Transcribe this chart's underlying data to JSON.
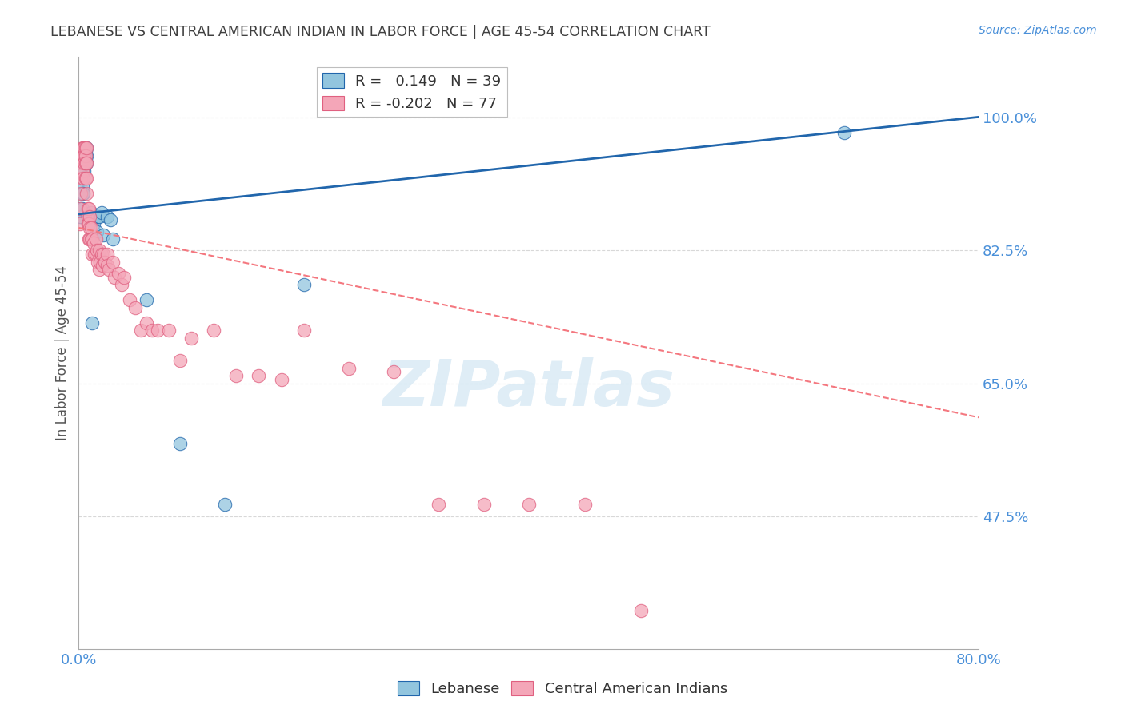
{
  "title": "LEBANESE VS CENTRAL AMERICAN INDIAN IN LABOR FORCE | AGE 45-54 CORRELATION CHART",
  "source": "Source: ZipAtlas.com",
  "ylabel": "In Labor Force | Age 45-54",
  "xlim": [
    0.0,
    0.8
  ],
  "ylim": [
    0.3,
    1.08
  ],
  "yticks": [
    0.475,
    0.65,
    0.825,
    1.0
  ],
  "ytick_labels": [
    "47.5%",
    "65.0%",
    "82.5%",
    "100.0%"
  ],
  "xticks": [
    0.0,
    0.1,
    0.2,
    0.3,
    0.4,
    0.5,
    0.6,
    0.7,
    0.8
  ],
  "xtick_labels": [
    "0.0%",
    "",
    "",
    "",
    "",
    "",
    "",
    "",
    "80.0%"
  ],
  "watermark": "ZIPatlas",
  "blue_color": "#92c5de",
  "pink_color": "#f4a6b8",
  "blue_line_color": "#2166ac",
  "pink_line_color": "#f4777f",
  "title_color": "#404040",
  "axis_label_color": "#555555",
  "tick_label_color": "#4a90d9",
  "grid_color": "#d8d8d8",
  "blue_points_x": [
    0.001,
    0.002,
    0.002,
    0.003,
    0.003,
    0.003,
    0.004,
    0.004,
    0.004,
    0.005,
    0.005,
    0.005,
    0.005,
    0.006,
    0.006,
    0.007,
    0.007,
    0.007,
    0.008,
    0.008,
    0.009,
    0.01,
    0.011,
    0.012,
    0.013,
    0.015,
    0.016,
    0.017,
    0.018,
    0.02,
    0.022,
    0.025,
    0.028,
    0.03,
    0.06,
    0.09,
    0.13,
    0.2,
    0.68
  ],
  "blue_points_y": [
    0.87,
    0.88,
    0.87,
    0.91,
    0.9,
    0.88,
    0.95,
    0.92,
    0.9,
    0.96,
    0.95,
    0.94,
    0.93,
    0.955,
    0.945,
    0.96,
    0.95,
    0.94,
    0.87,
    0.86,
    0.87,
    0.87,
    0.875,
    0.73,
    0.86,
    0.87,
    0.85,
    0.87,
    0.87,
    0.875,
    0.845,
    0.87,
    0.865,
    0.84,
    0.76,
    0.57,
    0.49,
    0.78,
    0.98
  ],
  "pink_points_x": [
    0.001,
    0.001,
    0.002,
    0.002,
    0.002,
    0.003,
    0.003,
    0.003,
    0.004,
    0.004,
    0.004,
    0.005,
    0.005,
    0.005,
    0.006,
    0.006,
    0.006,
    0.006,
    0.007,
    0.007,
    0.007,
    0.007,
    0.008,
    0.008,
    0.008,
    0.009,
    0.009,
    0.009,
    0.01,
    0.01,
    0.01,
    0.011,
    0.011,
    0.012,
    0.012,
    0.013,
    0.014,
    0.015,
    0.015,
    0.016,
    0.017,
    0.018,
    0.018,
    0.019,
    0.02,
    0.021,
    0.022,
    0.023,
    0.025,
    0.025,
    0.027,
    0.03,
    0.032,
    0.035,
    0.038,
    0.04,
    0.045,
    0.05,
    0.055,
    0.06,
    0.065,
    0.07,
    0.08,
    0.09,
    0.1,
    0.12,
    0.14,
    0.16,
    0.18,
    0.2,
    0.24,
    0.28,
    0.32,
    0.36,
    0.4,
    0.45,
    0.5
  ],
  "pink_points_y": [
    0.88,
    0.86,
    0.94,
    0.92,
    0.9,
    0.96,
    0.95,
    0.93,
    0.96,
    0.945,
    0.92,
    0.96,
    0.95,
    0.94,
    0.96,
    0.95,
    0.94,
    0.92,
    0.96,
    0.94,
    0.92,
    0.9,
    0.88,
    0.87,
    0.86,
    0.88,
    0.86,
    0.84,
    0.87,
    0.855,
    0.84,
    0.855,
    0.84,
    0.84,
    0.82,
    0.835,
    0.82,
    0.84,
    0.82,
    0.825,
    0.81,
    0.825,
    0.8,
    0.81,
    0.82,
    0.805,
    0.82,
    0.81,
    0.82,
    0.805,
    0.8,
    0.81,
    0.79,
    0.795,
    0.78,
    0.79,
    0.76,
    0.75,
    0.72,
    0.73,
    0.72,
    0.72,
    0.72,
    0.68,
    0.71,
    0.72,
    0.66,
    0.66,
    0.655,
    0.72,
    0.67,
    0.665,
    0.49,
    0.49,
    0.49,
    0.49,
    0.35
  ]
}
